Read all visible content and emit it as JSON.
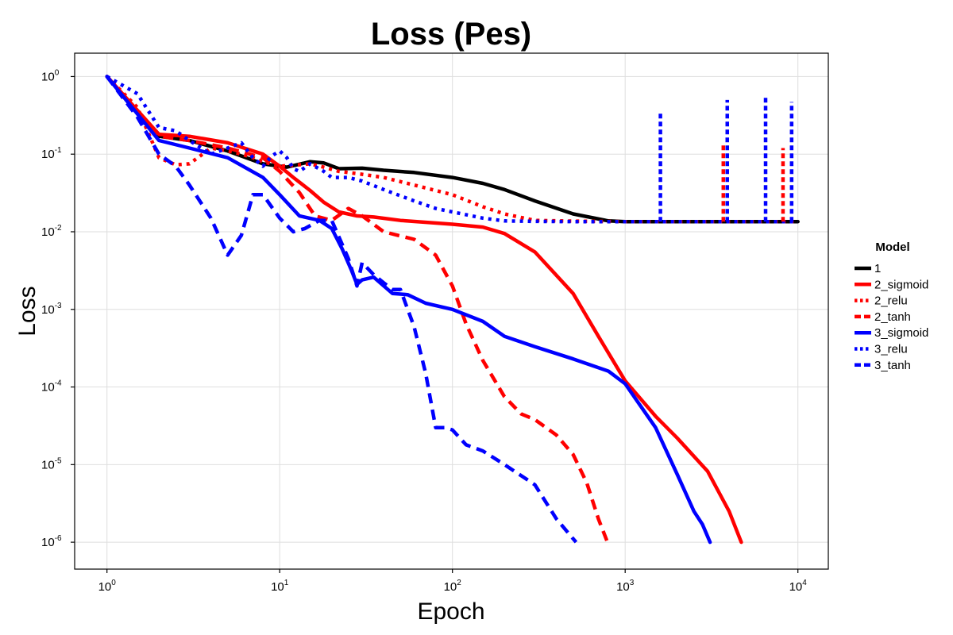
{
  "chart_data": {
    "type": "line",
    "title": "Loss (Pes)",
    "xlabel": "Epoch",
    "ylabel": "Loss",
    "x_scale": "log10",
    "y_scale": "log10",
    "xlim": [
      0.65,
      15000
    ],
    "ylim": [
      4.5e-07,
      2.0
    ],
    "grid": true,
    "x_ticks": [
      {
        "base": "10",
        "exp": "0",
        "value": 1
      },
      {
        "base": "10",
        "exp": "1",
        "value": 10
      },
      {
        "base": "10",
        "exp": "2",
        "value": 100
      },
      {
        "base": "10",
        "exp": "3",
        "value": 1000
      },
      {
        "base": "10",
        "exp": "4",
        "value": 10000
      }
    ],
    "y_ticks": [
      {
        "base": "10",
        "exp": "0",
        "value": 1
      },
      {
        "base": "10",
        "exp": "-1",
        "value": 0.1
      },
      {
        "base": "10",
        "exp": "-2",
        "value": 0.01
      },
      {
        "base": "10",
        "exp": "-3",
        "value": 0.001
      },
      {
        "base": "10",
        "exp": "-4",
        "value": 0.0001
      },
      {
        "base": "10",
        "exp": "-5",
        "value": 1e-05
      },
      {
        "base": "10",
        "exp": "-6",
        "value": 1e-06
      }
    ],
    "legend": {
      "title": "Model",
      "position": "right"
    },
    "series": [
      {
        "name": "1",
        "color": "#000000",
        "style": "solid",
        "x": [
          1,
          2,
          3,
          5,
          8,
          11,
          15,
          18,
          22,
          30,
          40,
          60,
          100,
          150,
          200,
          300,
          500,
          800,
          1000,
          2000,
          5000,
          10000
        ],
        "y": [
          1,
          0.17,
          0.15,
          0.11,
          0.075,
          0.068,
          0.08,
          0.077,
          0.065,
          0.066,
          0.062,
          0.058,
          0.05,
          0.042,
          0.035,
          0.025,
          0.017,
          0.0138,
          0.0135,
          0.0135,
          0.0135,
          0.0135
        ]
      },
      {
        "name": "2_sigmoid",
        "color": "#ff0000",
        "style": "solid",
        "x": [
          1,
          2,
          3,
          5,
          8,
          10,
          12,
          15,
          18,
          22,
          28,
          35,
          50,
          100,
          150,
          200,
          300,
          500,
          700,
          1000,
          1500,
          2000,
          3000,
          4000,
          4700
        ],
        "y": [
          1,
          0.18,
          0.17,
          0.14,
          0.1,
          0.07,
          0.05,
          0.034,
          0.024,
          0.018,
          0.016,
          0.0155,
          0.014,
          0.0125,
          0.0115,
          0.0095,
          0.0055,
          0.0016,
          0.00045,
          0.00012,
          4.2e-05,
          2.2e-05,
          8.2e-06,
          2.5e-06,
          1e-06
        ]
      },
      {
        "name": "2_relu",
        "color": "#ff0000",
        "style": "dotted",
        "x": [
          1,
          1.5,
          2,
          2.5,
          3,
          4,
          5,
          6,
          7,
          8,
          10,
          12,
          15,
          18,
          22,
          30,
          40,
          60,
          100,
          150,
          200,
          300,
          500,
          1000,
          2000,
          10000
        ],
        "y": [
          1,
          0.4,
          0.09,
          0.073,
          0.075,
          0.12,
          0.11,
          0.1,
          0.09,
          0.08,
          0.07,
          0.072,
          0.075,
          0.068,
          0.06,
          0.055,
          0.05,
          0.04,
          0.03,
          0.021,
          0.017,
          0.014,
          0.0137,
          0.0135,
          0.0135,
          0.0135
        ]
      },
      {
        "name": "2_tanh",
        "color": "#ff0000",
        "style": "dashed",
        "x": [
          1,
          2,
          3,
          5,
          8,
          10,
          13,
          16,
          20,
          25,
          30,
          40,
          60,
          80,
          100,
          120,
          150,
          200,
          250,
          300,
          400,
          500,
          600,
          700,
          790
        ],
        "y": [
          1,
          0.17,
          0.15,
          0.12,
          0.09,
          0.06,
          0.032,
          0.016,
          0.014,
          0.02,
          0.016,
          0.01,
          0.008,
          0.005,
          0.002,
          0.00065,
          0.00022,
          7.5e-05,
          4.5e-05,
          3.8e-05,
          2.4e-05,
          1.35e-05,
          5.8e-06,
          2e-06,
          1e-06
        ]
      },
      {
        "name": "3_sigmoid",
        "color": "#0000ff",
        "style": "solid",
        "x": [
          1,
          2,
          3,
          5,
          8,
          10,
          13,
          17,
          20,
          23,
          26,
          28,
          30,
          35,
          45,
          55,
          70,
          100,
          150,
          200,
          300,
          500,
          800,
          1000,
          1500,
          2000,
          2500,
          2800,
          3100
        ],
        "y": [
          1,
          0.15,
          0.12,
          0.09,
          0.05,
          0.03,
          0.016,
          0.014,
          0.011,
          0.006,
          0.0032,
          0.0021,
          0.0024,
          0.0026,
          0.0016,
          0.00155,
          0.0012,
          0.001,
          0.0007,
          0.00045,
          0.00033,
          0.00023,
          0.00016,
          0.00011,
          3e-05,
          7.5e-06,
          2.5e-06,
          1.7e-06,
          1e-06
        ]
      },
      {
        "name": "3_relu",
        "color": "#0000ff",
        "style": "dotted",
        "x": [
          1,
          1.5,
          2,
          2.5,
          3,
          4,
          5,
          6,
          7,
          8,
          9,
          10,
          11,
          12,
          13,
          15,
          18,
          20,
          25,
          30,
          40,
          60,
          80,
          100,
          150,
          200,
          300,
          500,
          1000,
          2000,
          10000
        ],
        "y": [
          1,
          0.6,
          0.22,
          0.2,
          0.15,
          0.1,
          0.12,
          0.14,
          0.09,
          0.07,
          0.095,
          0.11,
          0.09,
          0.065,
          0.06,
          0.075,
          0.06,
          0.05,
          0.05,
          0.045,
          0.035,
          0.025,
          0.02,
          0.018,
          0.015,
          0.0138,
          0.0136,
          0.0135,
          0.0135,
          0.0135,
          0.0135
        ]
      },
      {
        "name": "3_tanh",
        "color": "#0000ff",
        "style": "dashed",
        "x": [
          1,
          1.5,
          2,
          2.5,
          3,
          4,
          5,
          6,
          7,
          8,
          10,
          12,
          14,
          17,
          20,
          25,
          28,
          30,
          35,
          40,
          45,
          50,
          60,
          70,
          80,
          90,
          100,
          120,
          150,
          200,
          300,
          400,
          520
        ],
        "y": [
          1,
          0.3,
          0.1,
          0.07,
          0.04,
          0.015,
          0.005,
          0.009,
          0.03,
          0.03,
          0.015,
          0.01,
          0.011,
          0.014,
          0.014,
          0.0045,
          0.002,
          0.004,
          0.0028,
          0.0022,
          0.0018,
          0.0018,
          0.0006,
          0.00015,
          3e-05,
          3e-05,
          2.8e-05,
          1.8e-05,
          1.5e-05,
          1e-05,
          5.5e-06,
          2e-06,
          1e-06
        ]
      }
    ],
    "spikes": [
      {
        "series": "3_relu",
        "x": 1600,
        "y": 0.35
      },
      {
        "series": "2_relu",
        "x": 3700,
        "y": 0.14
      },
      {
        "series": "3_relu",
        "x": 3900,
        "y": 0.5
      },
      {
        "series": "3_relu",
        "x": 6500,
        "y": 0.55
      },
      {
        "series": "2_relu",
        "x": 8200,
        "y": 0.12
      },
      {
        "series": "3_relu",
        "x": 9200,
        "y": 0.47
      }
    ]
  }
}
